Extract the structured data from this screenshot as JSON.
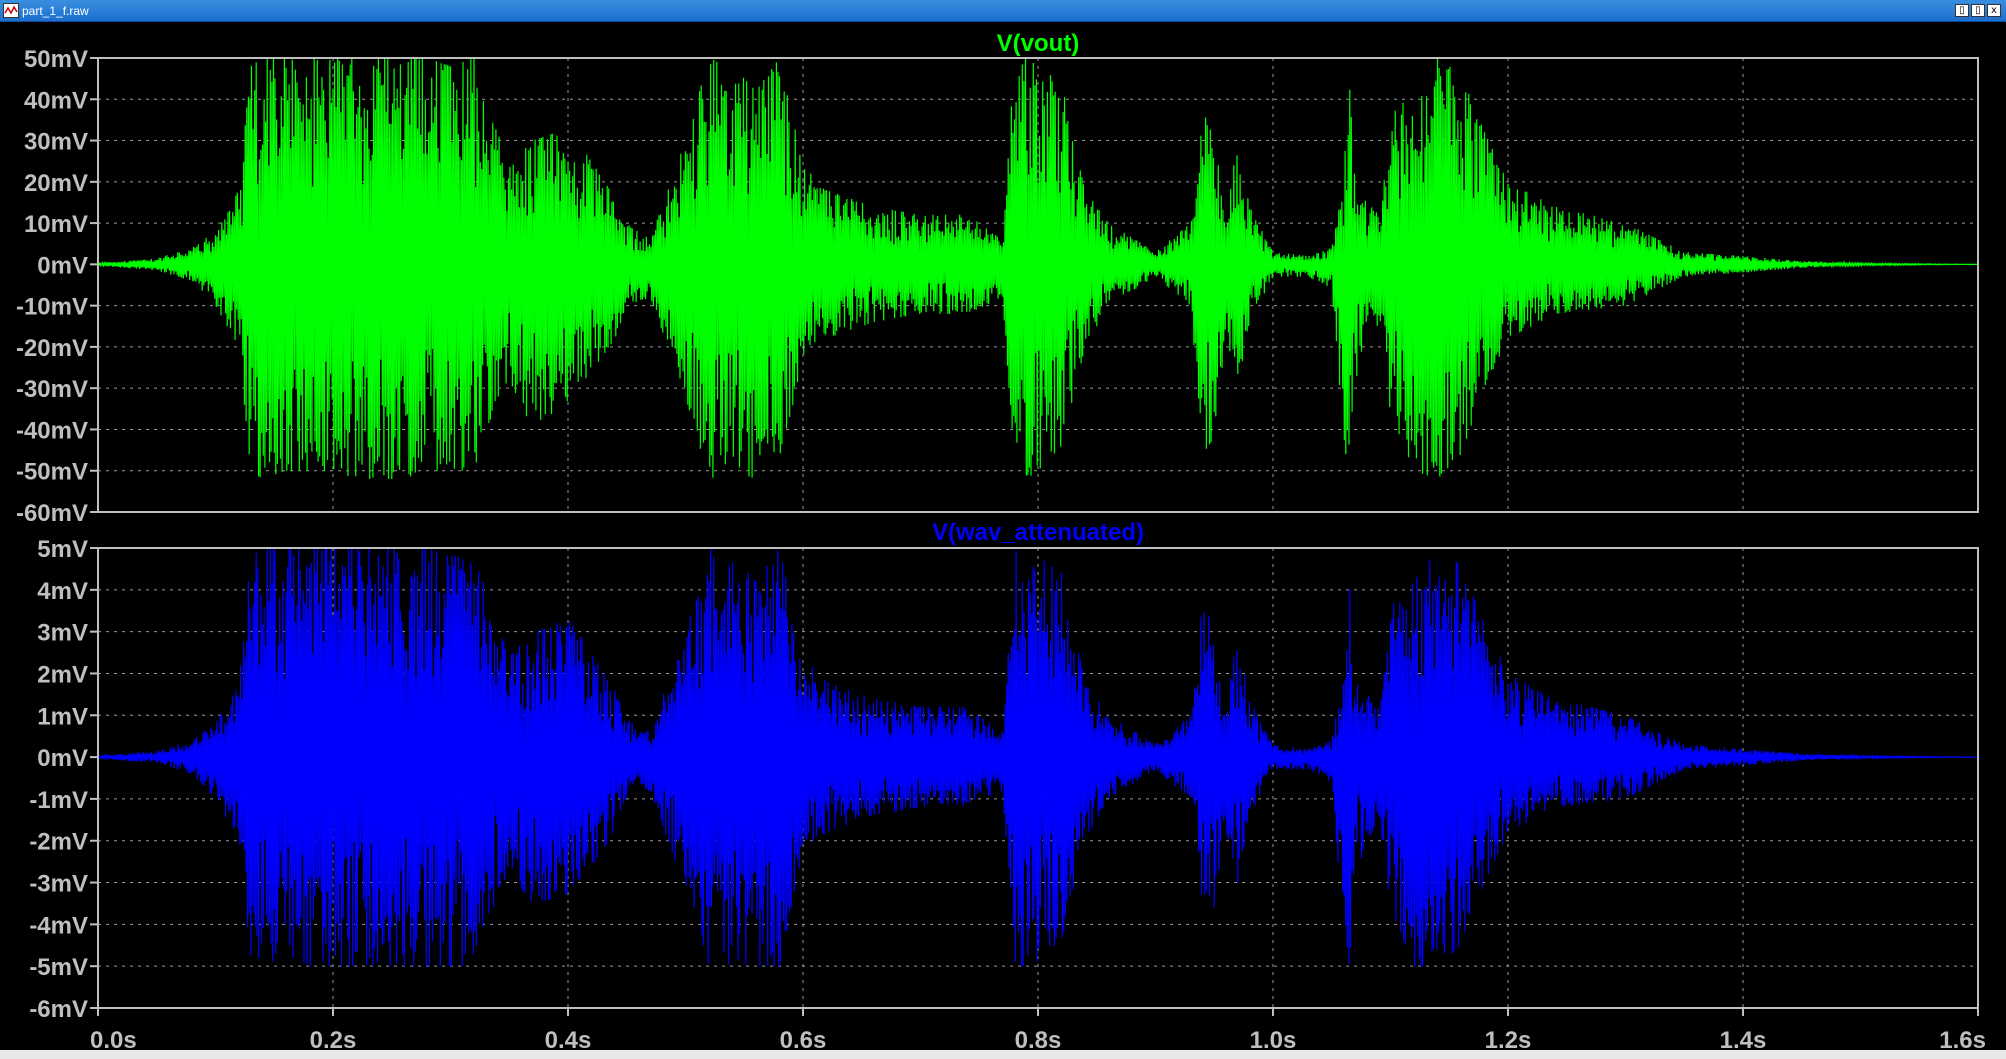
{
  "window": {
    "title": "part_1_f.raw",
    "min_label": "▯",
    "max_label": "▯",
    "close_label": "x"
  },
  "colors": {
    "background": "#000000",
    "axis_frame": "#bfbfbf",
    "grid": "#9a9a9a",
    "tick_label": "#bfbfbf",
    "vout": "#00ff00",
    "wav_attenuated": "#0000ff",
    "titlebar": "#1c6fcf"
  },
  "chart_data": [
    {
      "type": "line",
      "title": "V(vout)",
      "color": "#00ff00",
      "x_range": [
        0,
        1.6
      ],
      "y_range": [
        -60,
        50
      ],
      "y_unit": "mV",
      "y_ticks": [
        50,
        40,
        30,
        20,
        10,
        0,
        -10,
        -20,
        -30,
        -40,
        -50,
        -60
      ],
      "y_tick_labels": [
        "50mV",
        "40mV",
        "30mV",
        "20mV",
        "10mV",
        "0mV",
        "-10mV",
        "-20mV",
        "-30mV",
        "-40mV",
        "-50mV",
        "-60mV"
      ],
      "grid": true,
      "envelope": {
        "t": [
          0.0,
          0.05,
          0.08,
          0.1,
          0.12,
          0.13,
          0.14,
          0.16,
          0.18,
          0.2,
          0.22,
          0.24,
          0.26,
          0.28,
          0.3,
          0.32,
          0.33,
          0.35,
          0.37,
          0.4,
          0.42,
          0.44,
          0.45,
          0.47,
          0.5,
          0.52,
          0.54,
          0.56,
          0.58,
          0.6,
          0.62,
          0.66,
          0.7,
          0.74,
          0.77,
          0.78,
          0.79,
          0.8,
          0.82,
          0.84,
          0.86,
          0.9,
          0.93,
          0.94,
          0.95,
          0.96,
          0.97,
          0.98,
          1.0,
          1.03,
          1.05,
          1.06,
          1.065,
          1.07,
          1.09,
          1.1,
          1.12,
          1.14,
          1.16,
          1.18,
          1.2,
          1.24,
          1.3,
          1.35,
          1.4,
          1.45,
          1.5,
          1.6
        ],
        "max": [
          0.3,
          1.5,
          4,
          8,
          18,
          48,
          50,
          50,
          50,
          50,
          50,
          50,
          50,
          50,
          48,
          50,
          40,
          24,
          30,
          33,
          25,
          16,
          10,
          6,
          30,
          50,
          48,
          42,
          50,
          24,
          18,
          14,
          12,
          12,
          6,
          50,
          50,
          48,
          44,
          18,
          10,
          3,
          10,
          38,
          30,
          12,
          30,
          14,
          3,
          2,
          4,
          20,
          48,
          18,
          12,
          36,
          42,
          50,
          46,
          32,
          20,
          14,
          10,
          3,
          2,
          0.8,
          0.3,
          0
        ],
        "min": [
          -0.3,
          -1.5,
          -4,
          -10,
          -20,
          -50,
          -52,
          -50,
          -50,
          -50,
          -52,
          -52,
          -52,
          -50,
          -50,
          -50,
          -40,
          -28,
          -40,
          -33,
          -26,
          -18,
          -10,
          -8,
          -32,
          -52,
          -50,
          -52,
          -50,
          -22,
          -18,
          -14,
          -12,
          -12,
          -8,
          -50,
          -52,
          -50,
          -44,
          -20,
          -10,
          -3,
          -10,
          -46,
          -42,
          -18,
          -30,
          -14,
          -3,
          -3,
          -6,
          -42,
          -52,
          -28,
          -14,
          -36,
          -50,
          -52,
          -46,
          -30,
          -18,
          -12,
          -10,
          -3,
          -2,
          -0.8,
          -0.3,
          0
        ]
      },
      "x_ticks": [
        0,
        0.2,
        0.4,
        0.6,
        0.8,
        1.0,
        1.2,
        1.4,
        1.6
      ]
    },
    {
      "type": "line",
      "title": "V(wav_attenuated)",
      "color": "#0000ff",
      "x_range": [
        0,
        1.6
      ],
      "y_range": [
        -6,
        5
      ],
      "y_unit": "mV",
      "y_ticks": [
        5,
        4,
        3,
        2,
        1,
        0,
        -1,
        -2,
        -3,
        -4,
        -5,
        -6
      ],
      "y_tick_labels": [
        "5mV",
        "4mV",
        "3mV",
        "2mV",
        "1mV",
        "0mV",
        "-1mV",
        "-2mV",
        "-3mV",
        "-4mV",
        "-5mV",
        "-6mV"
      ],
      "grid": true,
      "envelope": {
        "t": [
          0.0,
          0.05,
          0.08,
          0.1,
          0.12,
          0.13,
          0.14,
          0.16,
          0.18,
          0.2,
          0.22,
          0.24,
          0.26,
          0.28,
          0.3,
          0.32,
          0.33,
          0.35,
          0.37,
          0.4,
          0.42,
          0.44,
          0.45,
          0.47,
          0.5,
          0.52,
          0.54,
          0.56,
          0.58,
          0.6,
          0.62,
          0.66,
          0.7,
          0.74,
          0.77,
          0.78,
          0.79,
          0.8,
          0.82,
          0.84,
          0.86,
          0.9,
          0.93,
          0.94,
          0.95,
          0.96,
          0.97,
          0.98,
          1.0,
          1.03,
          1.05,
          1.06,
          1.065,
          1.07,
          1.09,
          1.1,
          1.12,
          1.14,
          1.16,
          1.18,
          1.2,
          1.24,
          1.3,
          1.35,
          1.4,
          1.45,
          1.5,
          1.6
        ],
        "max": [
          0.03,
          0.15,
          0.4,
          0.8,
          1.8,
          4.8,
          5,
          5,
          5,
          5,
          5,
          5,
          5,
          5,
          4.8,
          5,
          4,
          2.4,
          3,
          3.3,
          2.5,
          1.6,
          1,
          0.6,
          3,
          5,
          4.8,
          4.2,
          5,
          2.4,
          1.8,
          1.4,
          1.2,
          1.2,
          0.6,
          5,
          5,
          4.8,
          4.4,
          1.8,
          1,
          0.3,
          1,
          3.8,
          3,
          1.2,
          3,
          1.4,
          0.3,
          0.2,
          0.4,
          2,
          4.8,
          1.8,
          1.2,
          3.6,
          4.2,
          5,
          4.6,
          3.2,
          2,
          1.4,
          1,
          0.3,
          0.2,
          0.08,
          0.03,
          0
        ],
        "min": [
          -0.03,
          -0.15,
          -0.4,
          -1,
          -2,
          -4.8,
          -5,
          -5,
          -5,
          -5,
          -5,
          -5,
          -5,
          -5,
          -5,
          -5,
          -4,
          -2.8,
          -3.5,
          -3.3,
          -2.6,
          -1.8,
          -1,
          -0.8,
          -3.2,
          -5,
          -5,
          -5,
          -5,
          -2.2,
          -1.8,
          -1.4,
          -1.2,
          -1.2,
          -0.8,
          -5,
          -5,
          -5,
          -4.4,
          -2,
          -1,
          -0.3,
          -1,
          -3.8,
          -3.8,
          -1.8,
          -3,
          -1.4,
          -0.3,
          -0.3,
          -0.6,
          -4.2,
          -5,
          -2.8,
          -1.4,
          -3.6,
          -5,
          -5,
          -4.6,
          -3,
          -1.8,
          -1.2,
          -1,
          -0.3,
          -0.2,
          -0.08,
          -0.03,
          0
        ]
      },
      "x_ticks": [
        0,
        0.2,
        0.4,
        0.6,
        0.8,
        1.0,
        1.2,
        1.4,
        1.6
      ],
      "x_tick_labels": [
        "0.0s",
        "0.2s",
        "0.4s",
        "0.6s",
        "0.8s",
        "1.0s",
        "1.2s",
        "1.4s",
        "1.6s"
      ]
    }
  ]
}
